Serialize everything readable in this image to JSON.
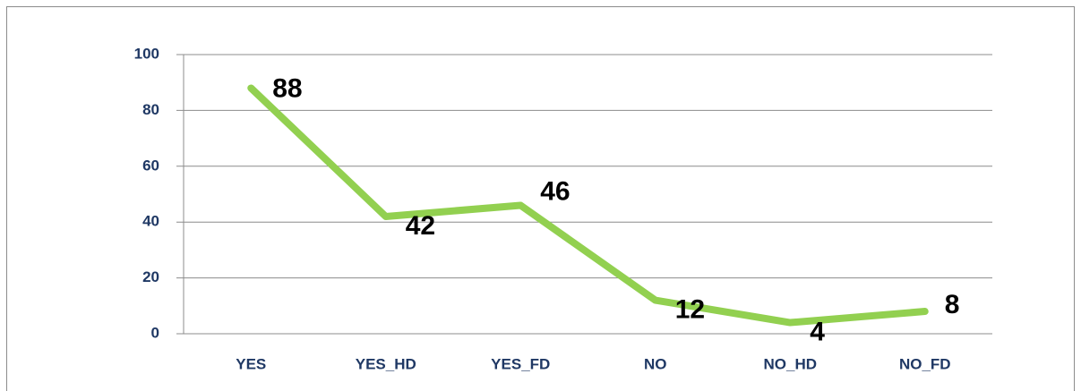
{
  "chart_data": {
    "type": "line",
    "categories": [
      "YES",
      "YES_HD",
      "YES_FD",
      "NO",
      "NO_HD",
      "NO_FD"
    ],
    "values": [
      88,
      42,
      46,
      12,
      4,
      8
    ],
    "color": "#92d050",
    "ylim": [
      0,
      100
    ],
    "yticks": [
      0,
      20,
      40,
      60,
      80,
      100
    ],
    "grid": true
  }
}
